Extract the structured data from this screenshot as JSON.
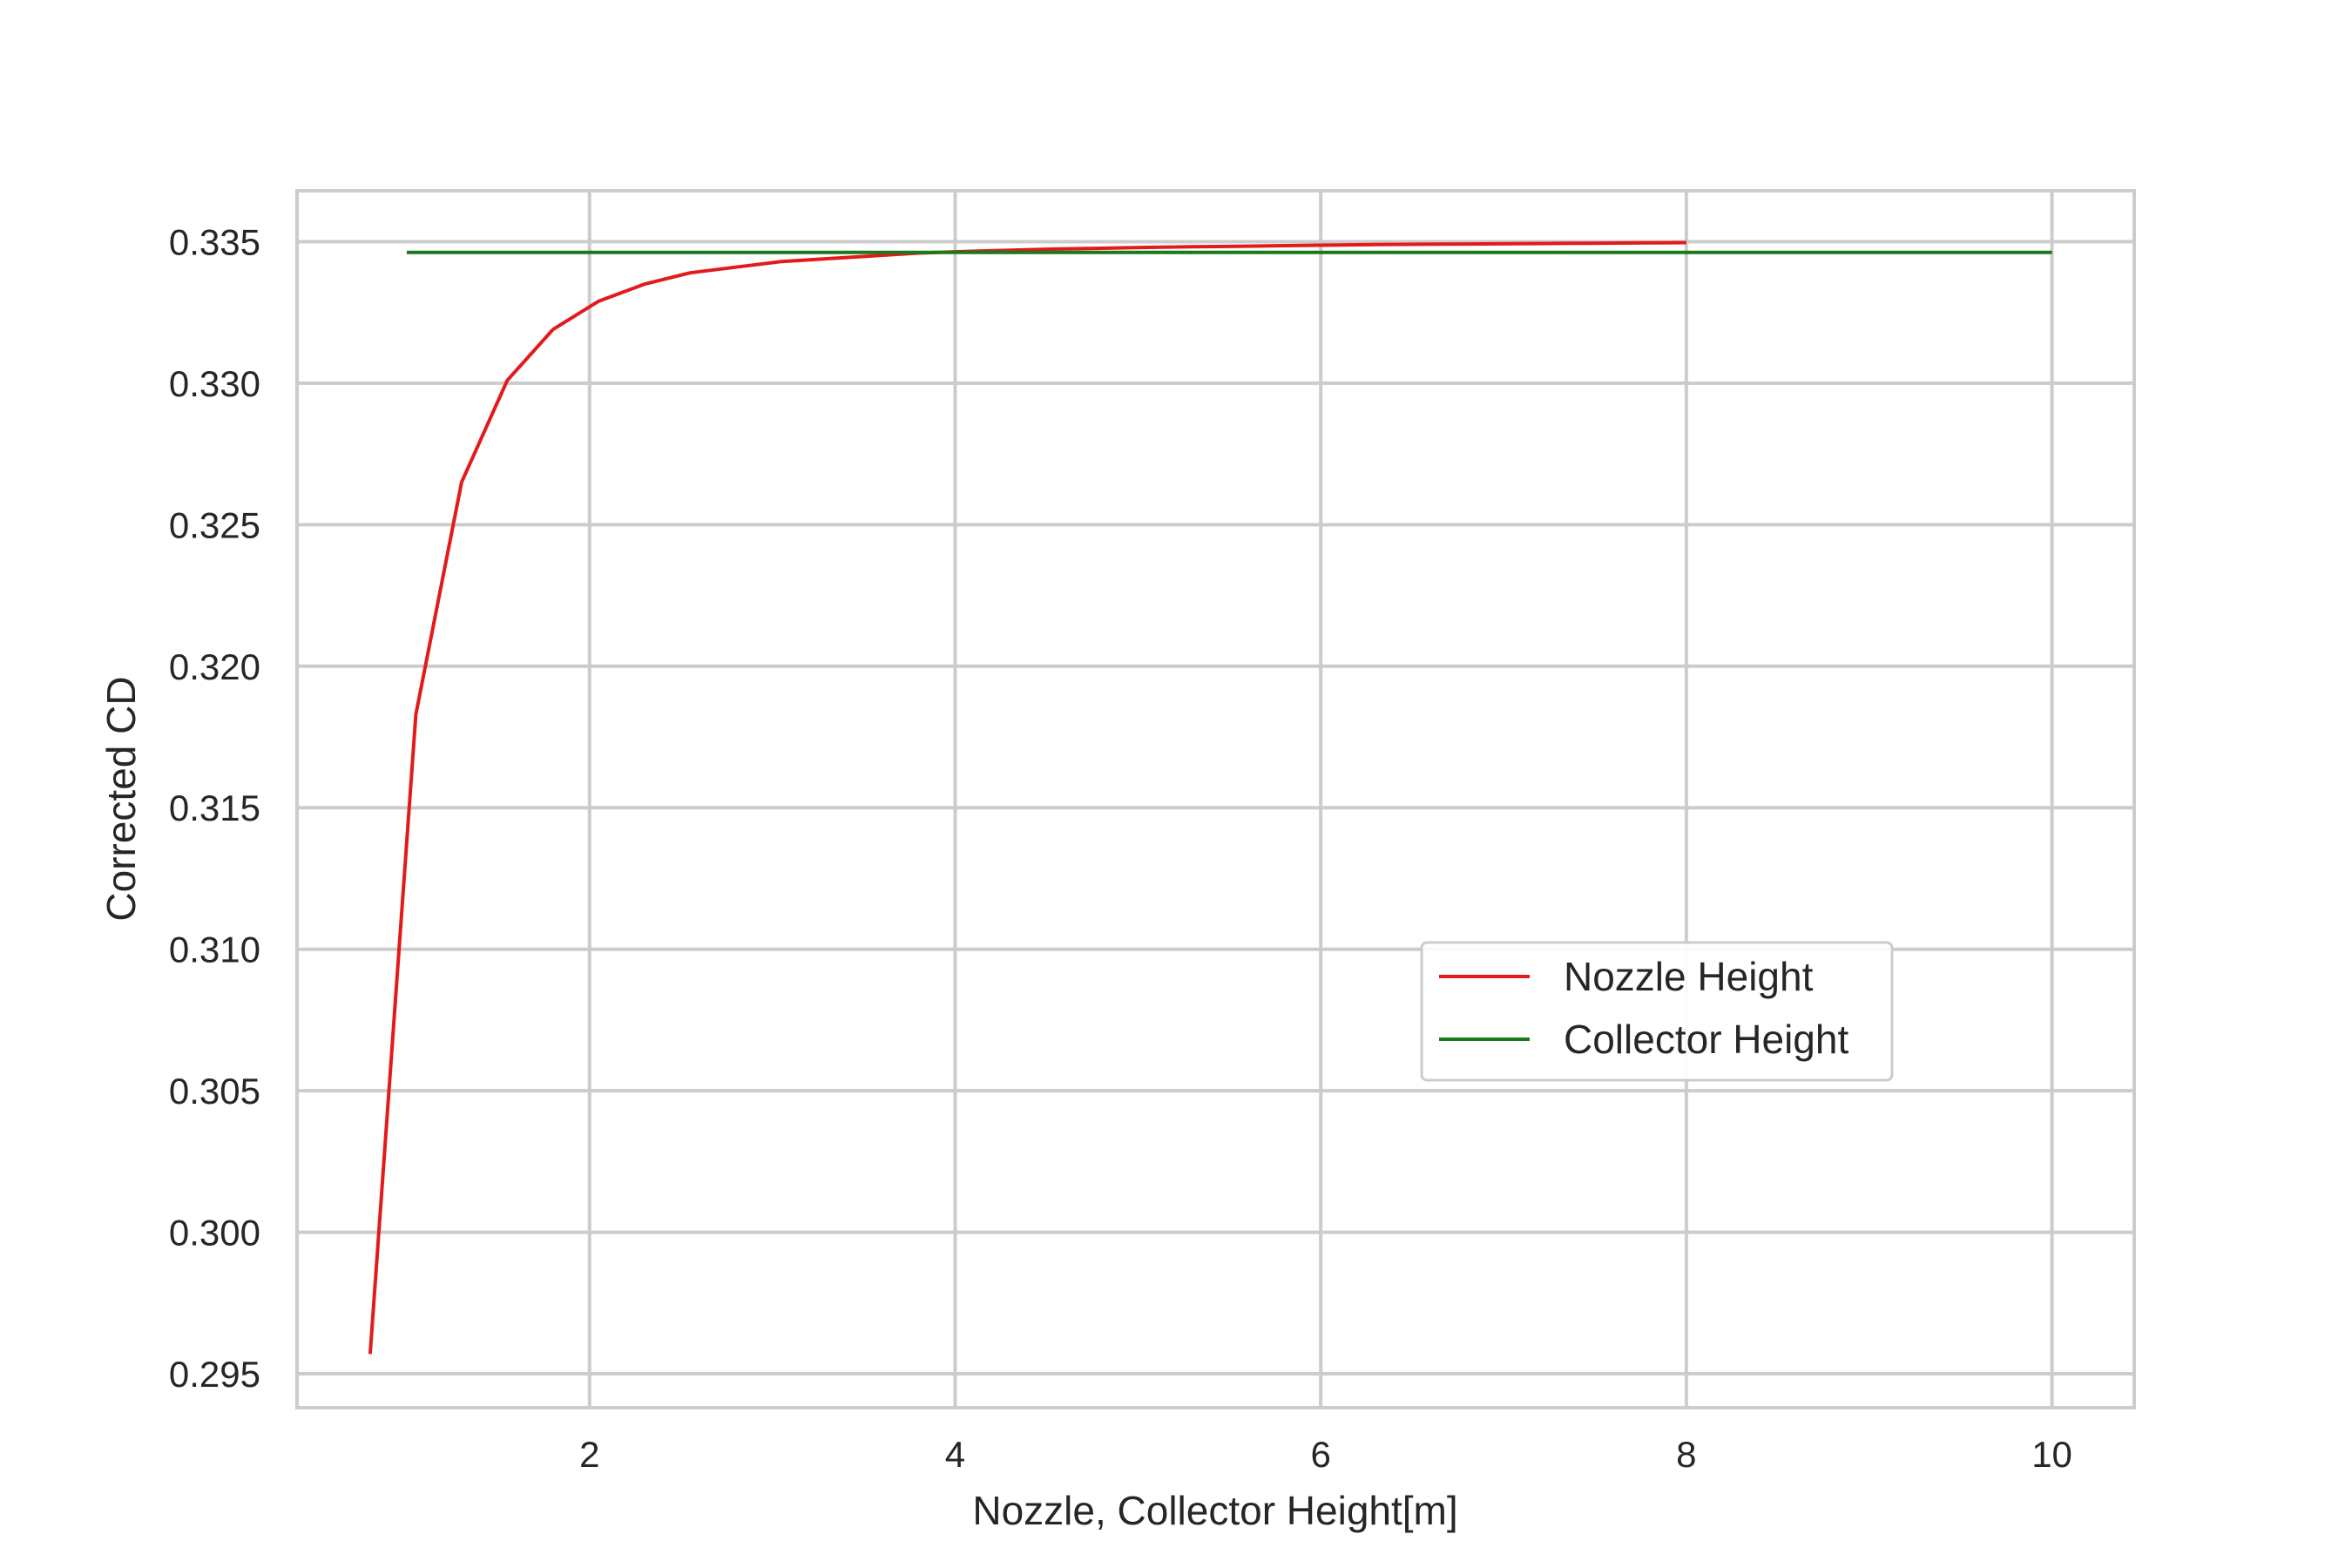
{
  "chart_data": {
    "type": "line",
    "title": "",
    "xlabel": "Nozzle, Collector Height[m]",
    "ylabel": "Corrected CD",
    "xlim": [
      0.4,
      10.45
    ],
    "ylim": [
      0.2938,
      0.3368
    ],
    "xticks": [
      2,
      4,
      6,
      8,
      10
    ],
    "xtick_labels": [
      "2",
      "4",
      "6",
      "8",
      "10"
    ],
    "yticks": [
      0.295,
      0.3,
      0.305,
      0.31,
      0.315,
      0.32,
      0.325,
      0.33,
      0.335
    ],
    "ytick_labels": [
      "0.295",
      "0.300",
      "0.305",
      "0.310",
      "0.315",
      "0.320",
      "0.325",
      "0.330",
      "0.335"
    ],
    "grid": true,
    "legend_position": "center-right",
    "series": [
      {
        "name": "Nozzle Height",
        "color": "#e31a1c",
        "x": [
          0.8,
          1.05,
          1.3,
          1.55,
          1.8,
          2.05,
          2.3,
          2.55,
          2.8,
          3.05,
          3.3,
          3.55,
          3.8,
          4.05,
          4.3,
          4.55,
          4.8,
          5.05,
          5.3,
          5.55,
          5.8,
          6.05,
          6.3,
          6.55,
          6.8,
          7.05,
          7.3,
          7.55,
          7.8,
          8.0
        ],
        "y": [
          0.2957,
          0.3183,
          0.3265,
          0.3301,
          0.3319,
          0.3329,
          0.3335,
          0.3339,
          0.3341,
          0.3343,
          0.3344,
          0.3345,
          0.3346,
          0.33465,
          0.3347,
          0.33474,
          0.33477,
          0.3348,
          0.33482,
          0.33484,
          0.33486,
          0.33488,
          0.3349,
          0.33491,
          0.33492,
          0.33493,
          0.33494,
          0.33495,
          0.33496,
          0.33497
        ]
      },
      {
        "name": "Collector Height",
        "color": "#1a7a1a",
        "x": [
          1.0,
          10.0
        ],
        "y": [
          0.33462,
          0.33462
        ]
      }
    ]
  }
}
